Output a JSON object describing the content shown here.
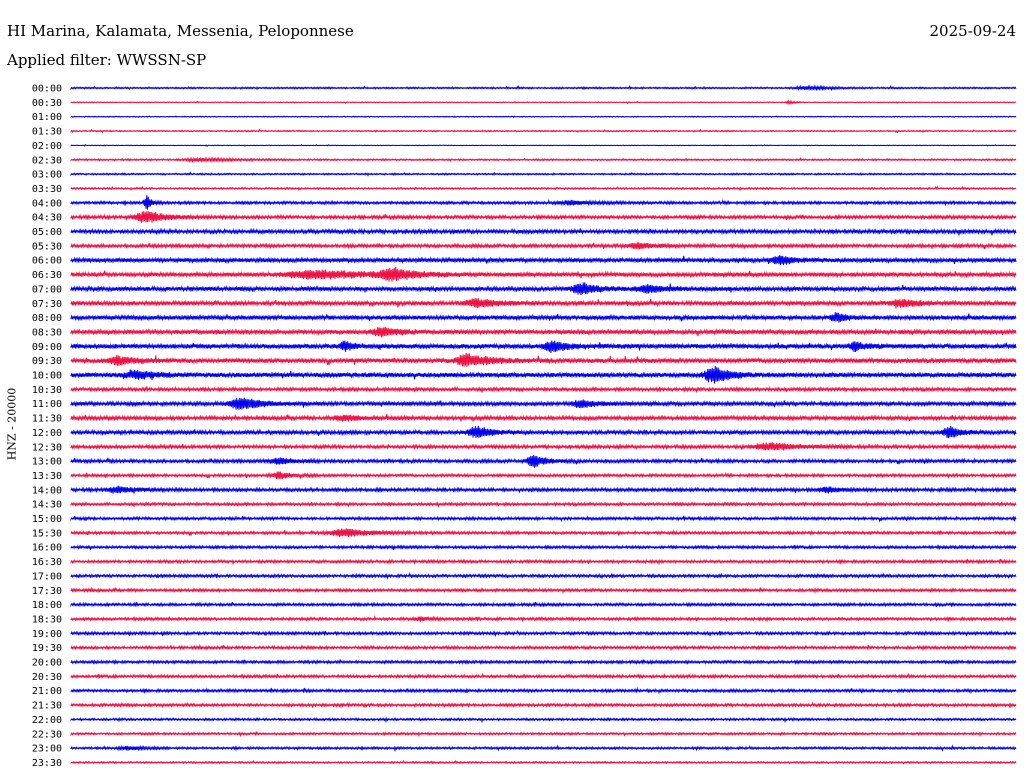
{
  "header": {
    "title": "HI Marina, Kalamata, Messenia, Peloponnese",
    "date": "2025-09-24",
    "filter_label": "Applied filter: WWSSN-SP",
    "channel_label": "HNZ - 20000"
  },
  "chart_data": {
    "type": "line",
    "title": "HI Marina, Kalamata, Messenia, Peloponnese",
    "date": "2025-09-24",
    "filter": "WWSSN-SP",
    "ylabel": "HNZ - 20000",
    "rows": [
      "00:00",
      "00:30",
      "01:00",
      "01:30",
      "02:00",
      "02:30",
      "03:00",
      "03:30",
      "04:00",
      "04:30",
      "05:00",
      "05:30",
      "06:00",
      "06:30",
      "07:00",
      "07:30",
      "08:00",
      "08:30",
      "09:00",
      "09:30",
      "10:00",
      "10:30",
      "11:00",
      "11:30",
      "12:00",
      "12:30",
      "13:00",
      "13:30",
      "14:00",
      "14:30",
      "15:00",
      "15:30",
      "16:00",
      "16:30",
      "17:00",
      "17:30",
      "18:00",
      "18:30",
      "19:00",
      "19:30",
      "20:00",
      "20:30",
      "21:00",
      "21:30",
      "22:00",
      "22:30",
      "23:00",
      "23:30"
    ],
    "noise_levels": [
      1.5,
      0.8,
      0.8,
      1.2,
      0.6,
      1.5,
      1.5,
      1.5,
      2.5,
      3,
      3.5,
      3,
      4,
      4,
      4,
      4,
      4,
      4,
      4.5,
      4.5,
      4.5,
      3,
      3.5,
      3.5,
      3.5,
      3,
      3,
      2.5,
      3,
      2.5,
      2.5,
      2.5,
      2.5,
      2.5,
      2.5,
      2.5,
      2.5,
      2.5,
      2.5,
      2.5,
      2.5,
      2.5,
      2.5,
      2.5,
      2,
      2,
      2,
      1.5
    ],
    "events": [
      {
        "row": 0,
        "at": 0.78,
        "amp": 3,
        "width": 0.02
      },
      {
        "row": 1,
        "at": 0.76,
        "amp": 3,
        "width": 0.005
      },
      {
        "row": 5,
        "at": 0.14,
        "amp": 3,
        "width": 0.03
      },
      {
        "row": 8,
        "at": 0.08,
        "amp": 16,
        "width": 0.004
      },
      {
        "row": 8,
        "at": 0.53,
        "amp": 4,
        "width": 0.02
      },
      {
        "row": 9,
        "at": 0.08,
        "amp": 12,
        "width": 0.02
      },
      {
        "row": 11,
        "at": 0.6,
        "amp": 5,
        "width": 0.02
      },
      {
        "row": 12,
        "at": 0.75,
        "amp": 8,
        "width": 0.015
      },
      {
        "row": 13,
        "at": 0.26,
        "amp": 8,
        "width": 0.05
      },
      {
        "row": 13,
        "at": 0.34,
        "amp": 12,
        "width": 0.02
      },
      {
        "row": 14,
        "at": 0.54,
        "amp": 12,
        "width": 0.015
      },
      {
        "row": 14,
        "at": 0.61,
        "amp": 6,
        "width": 0.02
      },
      {
        "row": 15,
        "at": 0.43,
        "amp": 8,
        "width": 0.02
      },
      {
        "row": 15,
        "at": 0.88,
        "amp": 7,
        "width": 0.02
      },
      {
        "row": 16,
        "at": 0.81,
        "amp": 8,
        "width": 0.01
      },
      {
        "row": 17,
        "at": 0.33,
        "amp": 8,
        "width": 0.02
      },
      {
        "row": 18,
        "at": 0.29,
        "amp": 8,
        "width": 0.01
      },
      {
        "row": 18,
        "at": 0.51,
        "amp": 10,
        "width": 0.015
      },
      {
        "row": 18,
        "at": 0.83,
        "amp": 8,
        "width": 0.01
      },
      {
        "row": 19,
        "at": 0.05,
        "amp": 8,
        "width": 0.015
      },
      {
        "row": 19,
        "at": 0.42,
        "amp": 12,
        "width": 0.02
      },
      {
        "row": 20,
        "at": 0.07,
        "amp": 7,
        "width": 0.02
      },
      {
        "row": 20,
        "at": 0.68,
        "amp": 16,
        "width": 0.015
      },
      {
        "row": 22,
        "at": 0.18,
        "amp": 12,
        "width": 0.02
      },
      {
        "row": 22,
        "at": 0.54,
        "amp": 8,
        "width": 0.015
      },
      {
        "row": 23,
        "at": 0.29,
        "amp": 5,
        "width": 0.02
      },
      {
        "row": 24,
        "at": 0.43,
        "amp": 12,
        "width": 0.015
      },
      {
        "row": 24,
        "at": 0.93,
        "amp": 11,
        "width": 0.012
      },
      {
        "row": 25,
        "at": 0.74,
        "amp": 7,
        "width": 0.03
      },
      {
        "row": 26,
        "at": 0.22,
        "amp": 6,
        "width": 0.015
      },
      {
        "row": 26,
        "at": 0.49,
        "amp": 12,
        "width": 0.012
      },
      {
        "row": 27,
        "at": 0.22,
        "amp": 7,
        "width": 0.012
      },
      {
        "row": 28,
        "at": 0.05,
        "amp": 6,
        "width": 0.02
      },
      {
        "row": 28,
        "at": 0.8,
        "amp": 5,
        "width": 0.015
      },
      {
        "row": 31,
        "at": 0.29,
        "amp": 8,
        "width": 0.025
      },
      {
        "row": 37,
        "at": 0.37,
        "amp": 4,
        "width": 0.01
      },
      {
        "row": 46,
        "at": 0.06,
        "amp": 4,
        "width": 0.015
      }
    ],
    "series": [
      {
        "name": "",
        "color": "#0000ee"
      },
      {
        "name": "",
        "color": "#ee1144"
      }
    ]
  }
}
